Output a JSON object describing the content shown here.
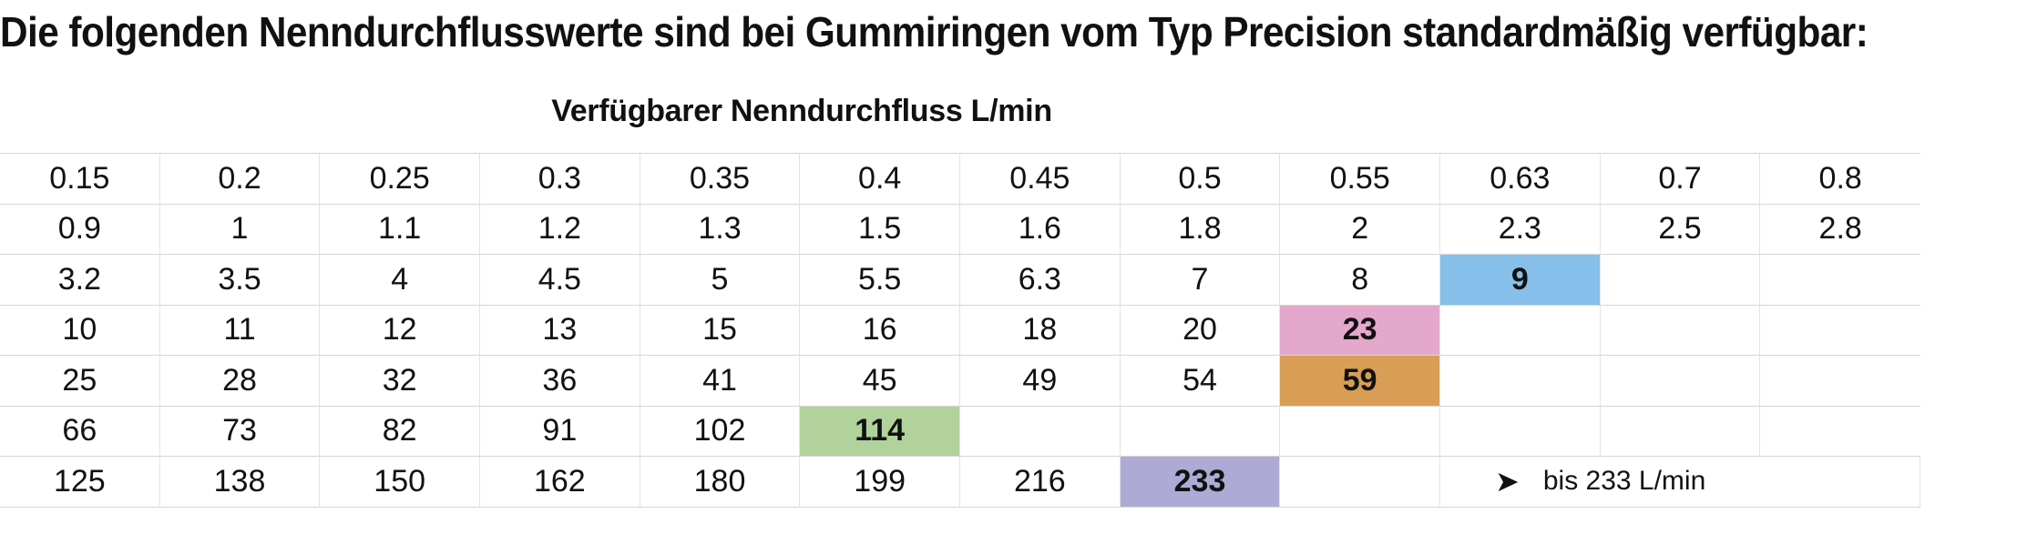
{
  "heading": "Die folgenden Nenndurchflusswerte sind bei Gummiringen vom Typ Precision standardmäßig verfügbar:",
  "table": {
    "title": "Verfügbarer Nenndurchfluss L/min",
    "rows": [
      [
        "0.15",
        "0.2",
        "0.25",
        "0.3",
        "0.35",
        "0.4",
        "0.45",
        "0.5",
        "0.55",
        "0.63",
        "0.7",
        "0.8"
      ],
      [
        "0.9",
        "1",
        "1.1",
        "1.2",
        "1.3",
        "1.5",
        "1.6",
        "1.8",
        "2",
        "2.3",
        "2.5",
        "2.8"
      ],
      [
        "3.2",
        "3.5",
        "4",
        "4.5",
        "5",
        "5.5",
        "6.3",
        "7",
        "8",
        "9",
        "",
        ""
      ],
      [
        "10",
        "11",
        "12",
        "13",
        "15",
        "16",
        "18",
        "20",
        "23",
        "",
        "",
        ""
      ],
      [
        "25",
        "28",
        "32",
        "36",
        "41",
        "45",
        "49",
        "54",
        "59",
        "",
        "",
        ""
      ],
      [
        "66",
        "73",
        "82",
        "91",
        "102",
        "114",
        "",
        "",
        "",
        "",
        "",
        ""
      ],
      [
        "125",
        "138",
        "150",
        "162",
        "180",
        "199",
        "216",
        "233",
        "",
        "",
        "",
        ""
      ]
    ],
    "highlights": [
      {
        "row": 2,
        "col": 9,
        "color": "#85bfea"
      },
      {
        "row": 3,
        "col": 8,
        "color": "#e4a8cc"
      },
      {
        "row": 4,
        "col": 8,
        "color": "#d89e55"
      },
      {
        "row": 5,
        "col": 5,
        "color": "#b1d39b"
      },
      {
        "row": 6,
        "col": 7,
        "color": "#aeaad6"
      }
    ],
    "note": {
      "row": 6,
      "col": 9,
      "arrow": "➤",
      "text": "bis 233 L/min"
    }
  }
}
